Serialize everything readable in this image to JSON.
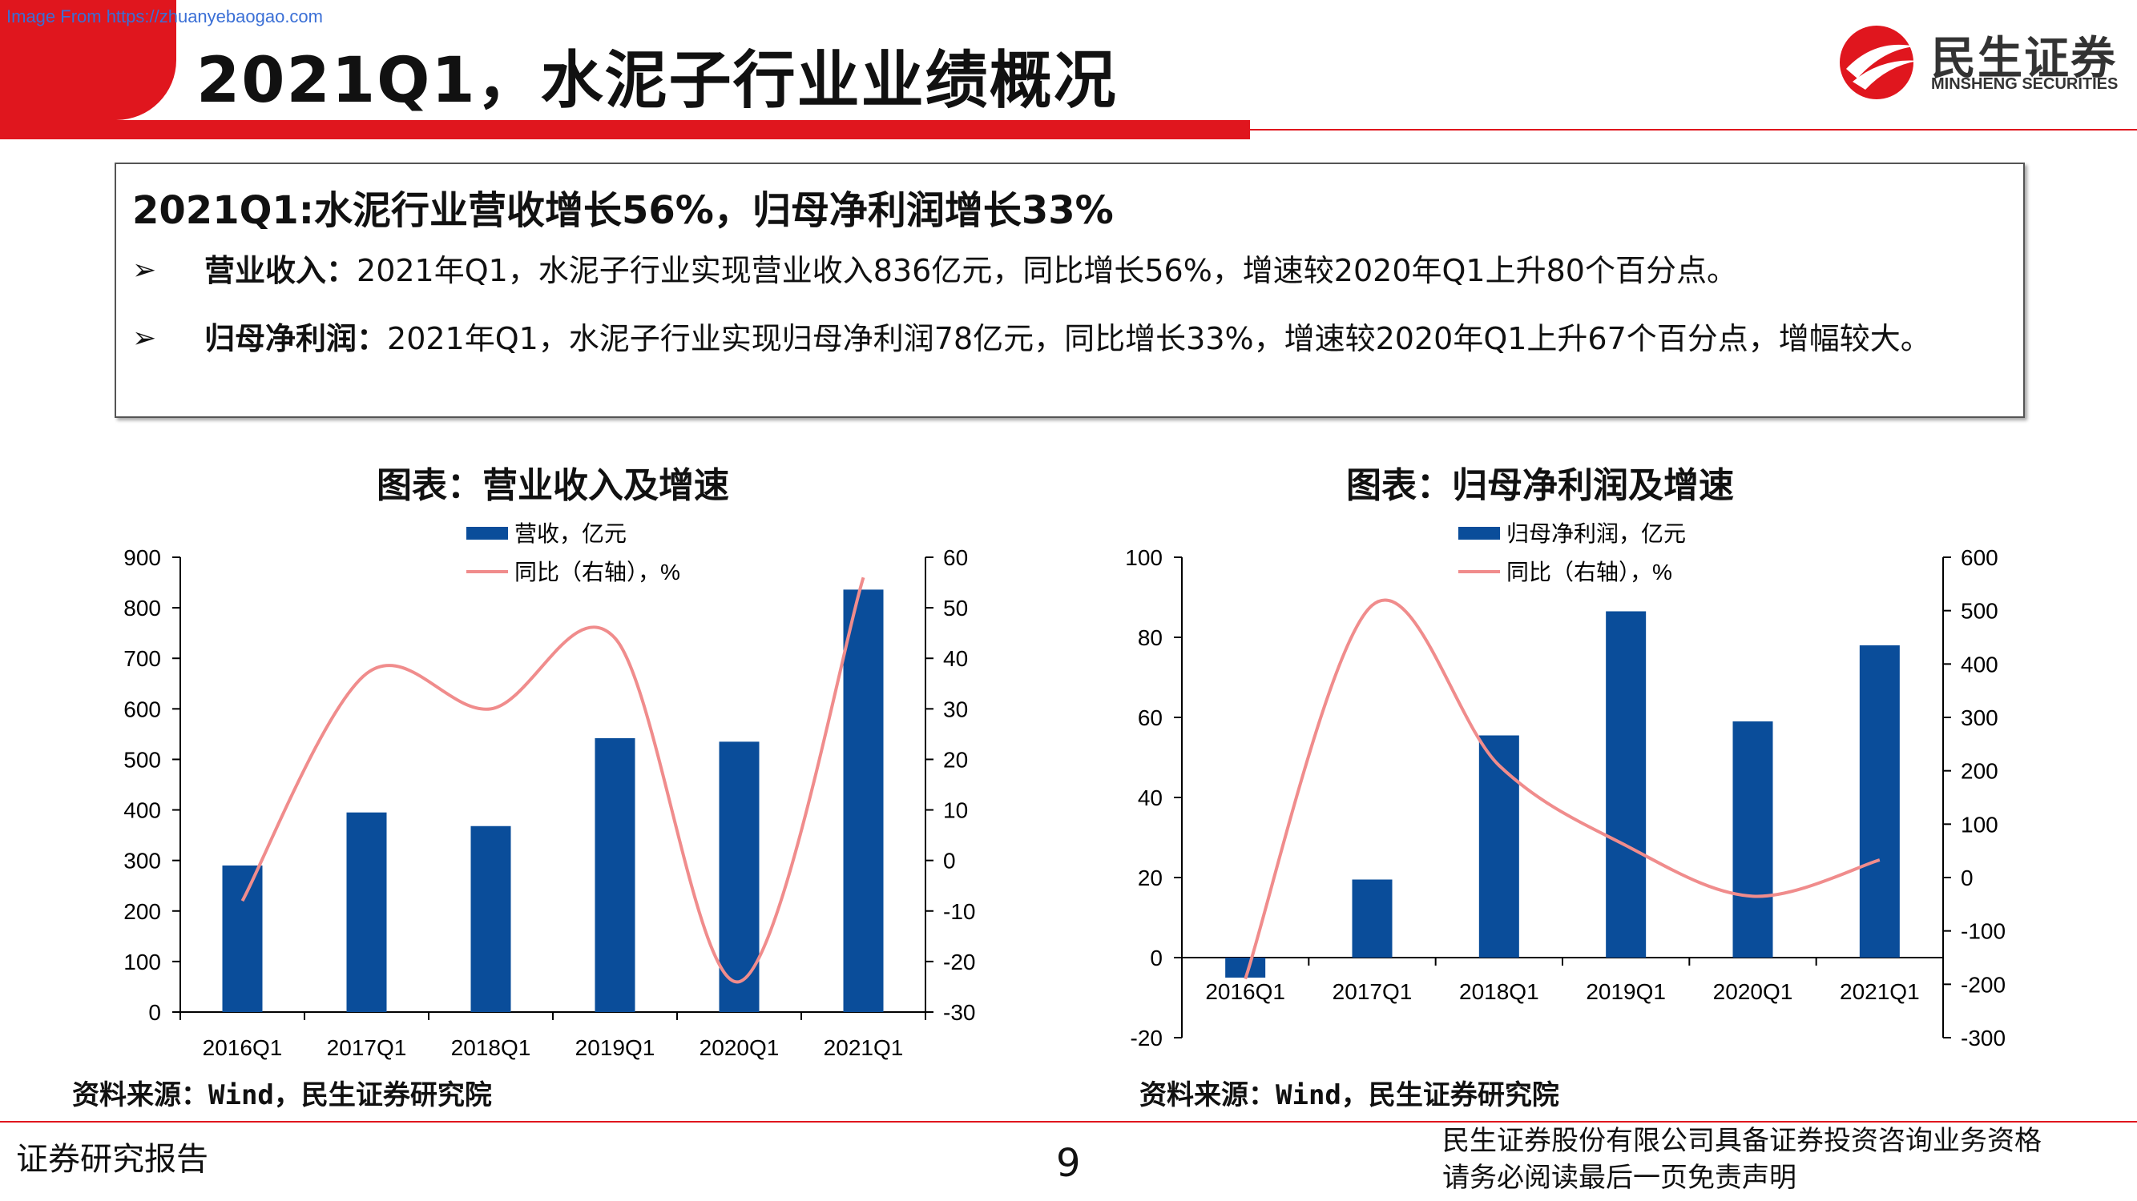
{
  "header": {
    "watermark": "Image From https://zhuanyebaogao.com",
    "title": "2021Q1，水泥子行业业绩概况",
    "logo_cn": "民生证券",
    "logo_en": "MINSHENG SECURITIES",
    "colors": {
      "brand_red": "#e0161e"
    }
  },
  "summary": {
    "heading": "2021Q1:水泥行业营收增长56%，归母净利润增长33%",
    "bullets": [
      {
        "label": "营业收入：",
        "text": "2021年Q1，水泥子行业实现营业收入836亿元，同比增长56%，增速较2020年Q1上升80个百分点。"
      },
      {
        "label": "归母净利润：",
        "text": "2021年Q1，水泥子行业实现归母净利润78亿元，同比增长33%，增速较2020年Q1上升67个百分点，增幅较大。"
      }
    ]
  },
  "charts": {
    "chart1_title": "图表：营业收入及增速",
    "chart2_title": "图表：归母净利润及增速",
    "source1": "资料来源：Wind，民生证券研究院",
    "source2": "资料来源：Wind，民生证券研究院"
  },
  "footer": {
    "left": "证券研究报告",
    "page": "9",
    "right_line1": "民生证券股份有限公司具备证券投资咨询业务资格",
    "right_line2": "请务必阅读最后一页免责声明"
  },
  "chart_data": [
    {
      "type": "bar",
      "title": "图表：营业收入及增速",
      "categories": [
        "2016Q1",
        "2017Q1",
        "2018Q1",
        "2019Q1",
        "2020Q1",
        "2021Q1"
      ],
      "series": [
        {
          "name": "营收，亿元",
          "type": "bar",
          "axis": "left",
          "color": "#0a4d9a",
          "values": [
            290,
            395,
            368,
            542,
            535,
            836
          ]
        },
        {
          "name": "同比（右轴），%",
          "type": "line",
          "axis": "right",
          "color": "#f08c8c",
          "smooth": true,
          "values": [
            -8,
            37,
            30,
            44,
            -24,
            56
          ]
        }
      ],
      "ylim_left": [
        0,
        900
      ],
      "yticks_left": [
        "0",
        "100",
        "200",
        "300",
        "400",
        "500",
        "600",
        "700",
        "800",
        "900"
      ],
      "ylim_right": [
        -30,
        60
      ],
      "yticks_right": [
        "-30",
        "-20",
        "-10",
        "0",
        "10",
        "20",
        "30",
        "40",
        "50",
        "60"
      ],
      "grid": false,
      "legend": "top-center"
    },
    {
      "type": "bar",
      "title": "图表：归母净利润及增速",
      "categories": [
        "2016Q1",
        "2017Q1",
        "2018Q1",
        "2019Q1",
        "2020Q1",
        "2021Q1"
      ],
      "series": [
        {
          "name": "归母净利润，亿元",
          "type": "bar",
          "axis": "left",
          "color": "#0a4d9a",
          "values": [
            -5,
            19.5,
            55.5,
            86.5,
            59,
            78
          ]
        },
        {
          "name": "同比（右轴），%",
          "type": "line",
          "axis": "right",
          "color": "#f08c8c",
          "smooth": true,
          "values": [
            -190,
            510,
            210,
            60,
            -35,
            33
          ]
        }
      ],
      "ylim_left": [
        -20,
        100
      ],
      "yticks_left": [
        "-20",
        "0",
        "20",
        "40",
        "60",
        "80",
        "100"
      ],
      "ylim_right": [
        -300,
        600
      ],
      "yticks_right": [
        "-300",
        "-200",
        "-100",
        "0",
        "100",
        "200",
        "300",
        "400",
        "500",
        "600"
      ],
      "grid": false,
      "legend": "top-center"
    }
  ]
}
